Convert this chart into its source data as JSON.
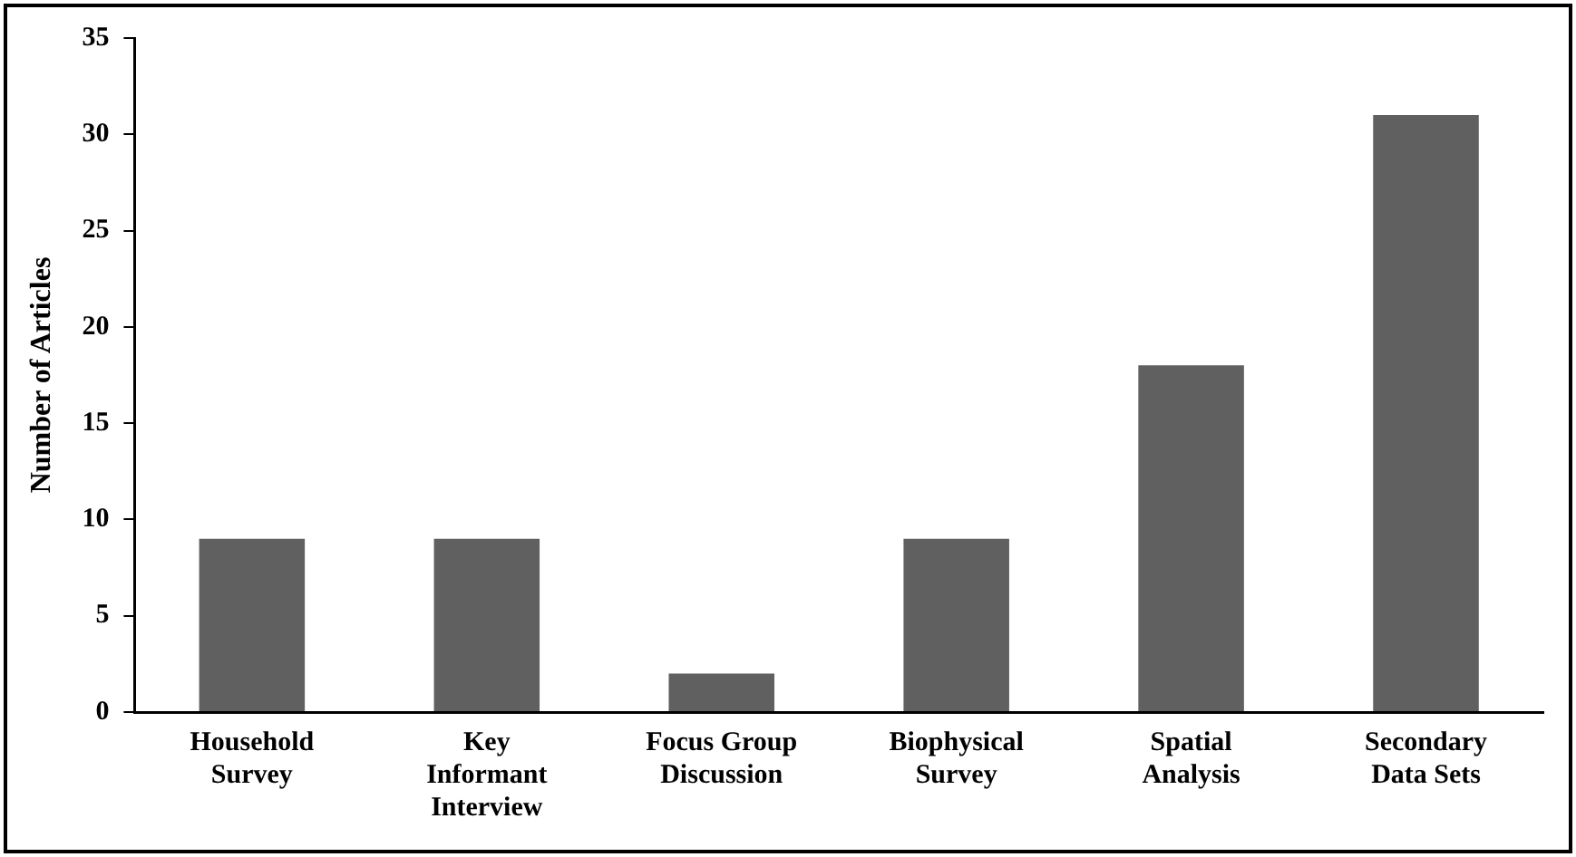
{
  "chart_data": {
    "type": "bar",
    "ylabel": "Number of Articles",
    "categories": [
      "Household Survey",
      "Key Informant Interview",
      "Focus Group Discussion",
      "Biophysical Survey",
      "Spatial Analysis",
      "Secondary Data Sets"
    ],
    "values": [
      9,
      9,
      2,
      9,
      18,
      31
    ],
    "color": "#606060",
    "ylim": [
      0,
      35
    ],
    "yticks": [
      0,
      5,
      10,
      15,
      20,
      25,
      30,
      35
    ],
    "grid": false,
    "legend": false
  }
}
